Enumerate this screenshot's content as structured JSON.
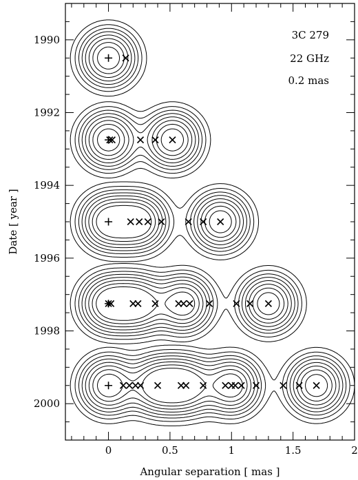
{
  "chart_data": {
    "type": "scatter",
    "title": "",
    "xlabel": "Angular separation [ mas ]",
    "ylabel": "Date [ year ]",
    "xlim": [
      -0.35,
      2.0
    ],
    "ylim": [
      2001.0,
      1989.0
    ],
    "x_ticks": [
      0,
      0.5,
      1,
      1.5,
      2
    ],
    "x_tick_labels": [
      "0",
      "0.5",
      "1",
      "1.5",
      "2"
    ],
    "y_ticks": [
      1990,
      1992,
      1994,
      1996,
      1998,
      2000
    ],
    "y_tick_labels": [
      "1990",
      "1992",
      "1994",
      "1996",
      "1998",
      "2000"
    ],
    "grid": false,
    "annotations": [
      "3C 279",
      "22 GHz",
      "0.2 mas"
    ],
    "epochs": [
      {
        "year": 1990.5,
        "core": 0.0,
        "components": [
          0.14
        ],
        "contour_peaks": [
          0.0
        ],
        "contour_extent": [
          -0.25,
          0.33
        ]
      },
      {
        "year": 1992.75,
        "core": 0.0,
        "components": [
          0.01,
          0.03,
          0.26,
          0.38,
          0.52
        ],
        "contour_peaks": [
          0.0,
          0.52
        ],
        "contour_extent": [
          -0.25,
          0.78
        ]
      },
      {
        "year": 1995.0,
        "core": 0.0,
        "components": [
          0.18,
          0.25,
          0.32,
          0.43,
          0.65,
          0.77,
          0.91
        ],
        "contour_peaks": [
          0.0,
          0.25,
          0.91
        ],
        "contour_extent": [
          -0.25,
          1.17
        ]
      },
      {
        "year": 1997.25,
        "core": 0.0,
        "components": [
          0.0,
          0.02,
          0.2,
          0.24,
          0.38,
          0.57,
          0.61,
          0.66,
          0.82,
          1.04,
          1.15,
          1.3
        ],
        "contour_peaks": [
          0.0,
          0.24,
          0.61,
          1.3
        ],
        "contour_extent": [
          -0.25,
          1.56
        ]
      },
      {
        "year": 1999.5,
        "core": 0.0,
        "components": [
          0.12,
          0.17,
          0.22,
          0.26,
          0.4,
          0.59,
          0.63,
          0.77,
          0.95,
          1.0,
          1.03,
          1.08,
          1.2,
          1.42,
          1.55,
          1.69
        ],
        "contour_peaks": [
          0.0,
          0.4,
          0.63,
          1.0,
          1.69
        ],
        "contour_extent": [
          -0.25,
          1.95
        ]
      }
    ]
  }
}
